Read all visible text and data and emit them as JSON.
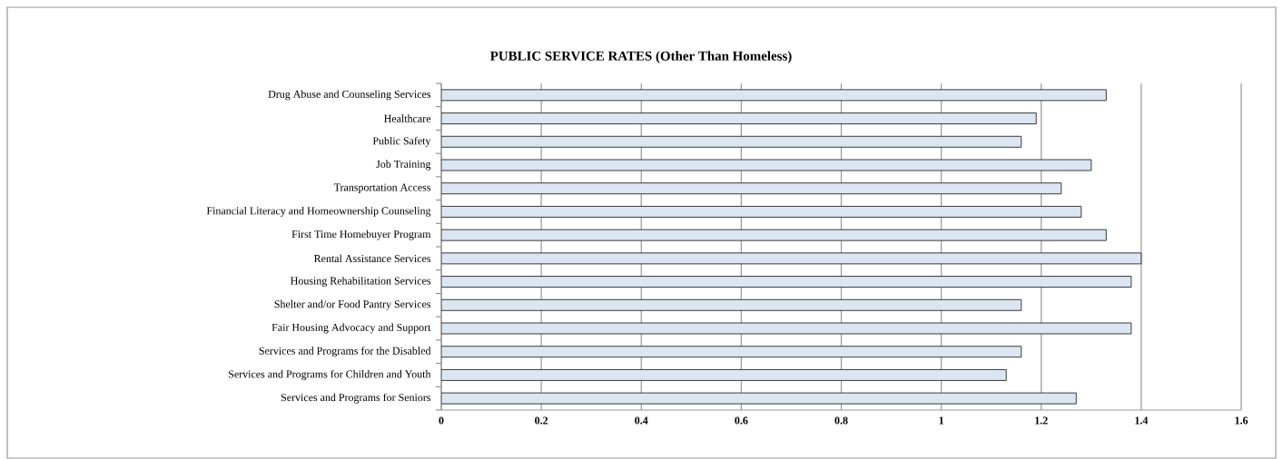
{
  "chart_data": {
    "type": "bar",
    "orientation": "horizontal",
    "title": "PUBLIC SERVICE RATES (Other Than Homeless)",
    "categories": [
      "Drug Abuse and Counseling Services",
      "Healthcare",
      "Public Safety",
      "Job Training",
      "Transportation Access",
      "Financial Literacy and Homeownership Counseling",
      "First Time Homebuyer Program",
      "Rental Assistance Services",
      "Housing Rehabilitation Services",
      "Shelter and/or Food Pantry Services",
      "Fair Housing Advocacy and Support",
      "Services and Programs for the Disabled",
      "Services and Programs for Children and Youth",
      "Services and Programs for Seniors"
    ],
    "values": [
      1.33,
      1.19,
      1.16,
      1.3,
      1.24,
      1.28,
      1.33,
      1.4,
      1.38,
      1.16,
      1.38,
      1.16,
      1.13,
      1.27
    ],
    "color": "#dce6f2",
    "xlim": [
      0,
      1.6
    ],
    "xticks": [
      0,
      0.2,
      0.4,
      0.6,
      0.8,
      1,
      1.2,
      1.4,
      1.6
    ],
    "grid": "x"
  }
}
